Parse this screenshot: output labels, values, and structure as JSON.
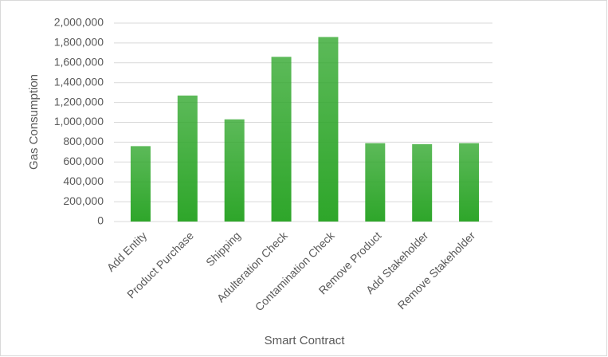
{
  "chart_data": {
    "type": "bar",
    "x_label": "Smart Contract",
    "y_label": "Gas Consumption",
    "categories": [
      "Add Entity",
      "Product Purchase",
      "Shipping",
      "Adulteration Check",
      "Contamination Check",
      "Remove Product",
      "Add Stakeholder",
      "Remove Stakeholder"
    ],
    "values": [
      760000,
      1270000,
      1030000,
      1660000,
      1860000,
      790000,
      780000,
      790000
    ],
    "color": "#2ea62a",
    "ylim": [
      0,
      2000000
    ],
    "yticks": [
      0,
      {
        "value": 200000,
        "label": "200,000"
      },
      {
        "value": 400000,
        "label": "400,000"
      },
      {
        "value": 600000,
        "label": "600,000"
      },
      {
        "value": 800000,
        "label": "800,000"
      },
      {
        "value": 1000000,
        "label": "1,000,000"
      },
      {
        "value": 1200000,
        "label": "1,200,000"
      },
      {
        "value": 1400000,
        "label": "1,400,000"
      },
      {
        "value": 1600000,
        "label": "1,600,000"
      },
      {
        "value": 1800000,
        "label": "1,800,000"
      },
      {
        "value": 2000000,
        "label": "2,000,000"
      }
    ],
    "grid": true
  }
}
